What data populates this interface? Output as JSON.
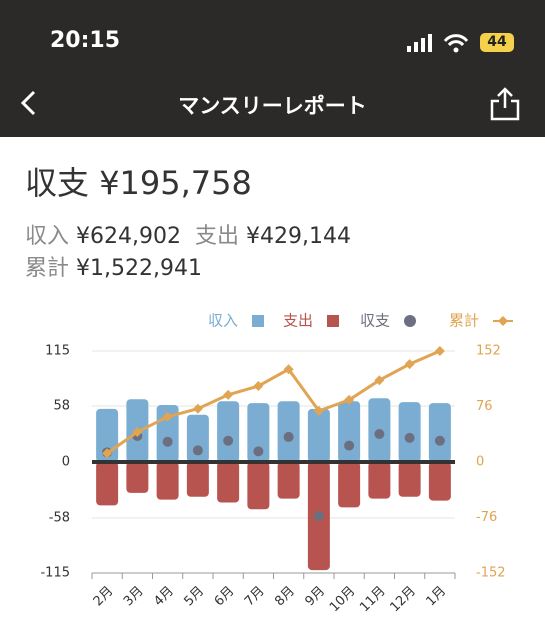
{
  "status": {
    "time": "20:15",
    "battery": "44"
  },
  "nav": {
    "title": "マンスリーレポート"
  },
  "summary": {
    "net_label": "収支",
    "net_value": "¥195,758",
    "income_label": "収入",
    "income_value": "¥624,902",
    "expense_label": "支出",
    "expense_value": "¥429,144",
    "total_label": "累計",
    "total_value": "¥1,522,941"
  },
  "chart_data": {
    "type": "bar",
    "categories": [
      "2月",
      "3月",
      "4月",
      "5月",
      "6月",
      "7月",
      "8月",
      "9月",
      "10月",
      "11月",
      "12月",
      "1月"
    ],
    "series": [
      {
        "name": "収入",
        "type": "bar",
        "color": "#7aadd1",
        "values": [
          55,
          65,
          59,
          49,
          63,
          61,
          63,
          55,
          63,
          66,
          62,
          61
        ]
      },
      {
        "name": "支出",
        "type": "bar",
        "color": "#b85450",
        "values": [
          -45,
          -32,
          -39,
          -36,
          -42,
          -49,
          -38,
          -112,
          -47,
          -38,
          -36,
          -40
        ]
      },
      {
        "name": "収支",
        "type": "scatter",
        "color": "#6c6f7f",
        "values": [
          10,
          27,
          21,
          12,
          22,
          11,
          26,
          -56,
          17,
          29,
          25,
          22
        ]
      },
      {
        "name": "累計",
        "type": "line",
        "axis": "y2",
        "color": "#e0a452",
        "values": [
          12,
          41,
          62,
          73,
          92,
          104,
          127,
          70,
          85,
          112,
          134,
          152
        ]
      }
    ],
    "ylim": [
      -115,
      115
    ],
    "yticks": [
      115,
      58,
      0,
      -58,
      -115
    ],
    "y2lim": [
      -152,
      152
    ],
    "y2ticks": [
      152,
      76,
      0,
      -76,
      -152
    ],
    "grid": true,
    "legend": "top-right"
  }
}
